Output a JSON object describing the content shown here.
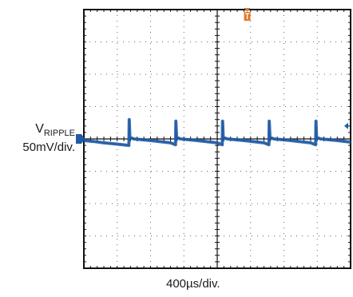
{
  "chart_data": {
    "type": "line",
    "title": "",
    "series": [
      {
        "name": "",
        "color": "#1f5aa6",
        "x": [
          0,
          0.3,
          0.6,
          1.0,
          1.35,
          1.36,
          1.38,
          1.5,
          2.0,
          2.6,
          2.75,
          2.76,
          2.78,
          2.9,
          3.4,
          4.0,
          4.15,
          4.16,
          4.18,
          4.3,
          4.8,
          5.4,
          5.55,
          5.56,
          5.58,
          5.7,
          6.2,
          6.8,
          6.95,
          6.96,
          6.98,
          7.1,
          7.6,
          8.0
        ],
        "y": [
          -0.05,
          -0.08,
          -0.12,
          -0.16,
          -0.2,
          0.6,
          0.05,
          0.0,
          -0.05,
          -0.12,
          -0.18,
          0.55,
          0.05,
          0.0,
          -0.05,
          -0.12,
          -0.18,
          0.55,
          0.05,
          0.0,
          -0.05,
          -0.12,
          -0.18,
          0.55,
          0.05,
          0.0,
          -0.05,
          -0.12,
          -0.18,
          0.55,
          0.05,
          0.0,
          -0.05,
          -0.1
        ]
      }
    ],
    "xlim": [
      0,
      8
    ],
    "ylim": [
      -4,
      4
    ],
    "x_divisions": 8,
    "y_divisions": 8,
    "grid": true,
    "ylabel_name": "V",
    "ylabel_sub": "RIPPLE",
    "ylabel_scale": "50mV/div.",
    "xlabel": "400µs/div.",
    "ground_marker_color": "#1f5aa6",
    "trigger_marker_color": "#e07a2a"
  }
}
